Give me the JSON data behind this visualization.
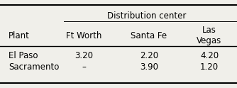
{
  "title": "Distribution center",
  "col_header": [
    "Plant",
    "Ft Worth",
    "Santa Fe",
    "Las\nVegas"
  ],
  "rows": [
    [
      "El Paso",
      "3.20",
      "2.20",
      "4.20"
    ],
    [
      "Sacramento",
      "–",
      "3.90",
      "1.20"
    ]
  ],
  "bg_color": "#f0efea",
  "font_size": 8.5,
  "title_font_size": 8.5
}
